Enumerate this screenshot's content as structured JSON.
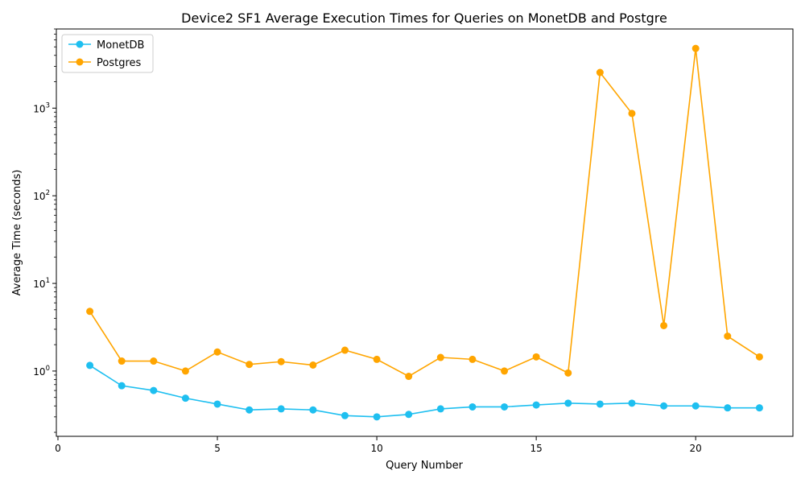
{
  "chart_data": {
    "type": "line",
    "title": "Device2 SF1 Average Execution Times for Queries on MonetDB and Postgre",
    "xlabel": "Query Number",
    "ylabel": "Average Time (seconds)",
    "yscale": "log",
    "xlim": [
      -0.05,
      23.05
    ],
    "ylim": [
      0.18,
      8000
    ],
    "x_ticks": [
      0,
      5,
      10,
      15,
      20
    ],
    "x_tick_labels": [
      "0",
      "5",
      "10",
      "15",
      "20"
    ],
    "y_tick_labels": [
      {
        "value": 1,
        "base": "10",
        "exp": "0"
      },
      {
        "value": 10,
        "base": "10",
        "exp": "1"
      },
      {
        "value": 100,
        "base": "10",
        "exp": "2"
      },
      {
        "value": 1000,
        "base": "10",
        "exp": "3"
      }
    ],
    "grid": false,
    "legend_position": "top-left",
    "x": [
      1,
      2,
      3,
      4,
      5,
      6,
      7,
      8,
      9,
      10,
      11,
      12,
      13,
      14,
      15,
      16,
      17,
      18,
      19,
      20,
      21,
      22
    ],
    "series": [
      {
        "name": "MonetDB",
        "color": "#1ebff0",
        "values": [
          1.16,
          0.68,
          0.6,
          0.49,
          0.42,
          0.36,
          0.37,
          0.36,
          0.31,
          0.3,
          0.32,
          0.37,
          0.39,
          0.39,
          0.41,
          0.43,
          0.42,
          0.43,
          0.4,
          0.4,
          0.38,
          0.38
        ]
      },
      {
        "name": "Postgres",
        "color": "#ffa500",
        "values": [
          4.8,
          1.3,
          1.3,
          1.0,
          1.65,
          1.19,
          1.28,
          1.17,
          1.73,
          1.36,
          0.87,
          1.43,
          1.36,
          1.0,
          1.45,
          0.95,
          2550,
          870,
          3.3,
          4800,
          2.5,
          1.45
        ]
      }
    ]
  }
}
